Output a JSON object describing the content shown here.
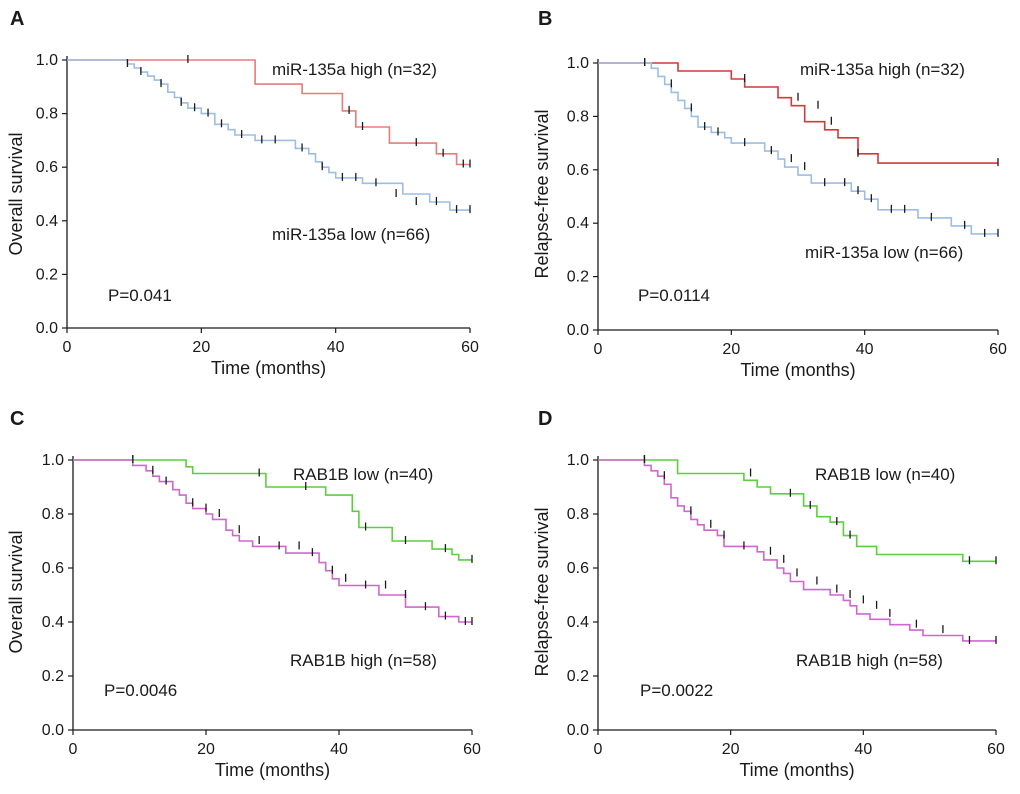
{
  "figure": {
    "panels": [
      "A",
      "B",
      "C",
      "D"
    ]
  },
  "chart_data": [
    {
      "type": "line",
      "panel": "A",
      "title": "",
      "xlabel": "Time (months)",
      "ylabel": "Overall survival",
      "xlim": [
        0,
        60
      ],
      "ylim": [
        0,
        1
      ],
      "xticks": [
        "0",
        "20",
        "40",
        "60"
      ],
      "yticks": [
        "0.0",
        "0.2",
        "0.4",
        "0.6",
        "0.8",
        "1.0"
      ],
      "pvalue": "P=0.041",
      "series": [
        {
          "name": "miR-135a high (n=32)",
          "color": "#e87b7b",
          "x": [
            0,
            28,
            28,
            35,
            35,
            41,
            41,
            43,
            43,
            48,
            48,
            55,
            55,
            58,
            58,
            60
          ],
          "y": [
            1,
            1,
            0.91,
            0.91,
            0.875,
            0.875,
            0.81,
            0.81,
            0.75,
            0.75,
            0.69,
            0.69,
            0.65,
            0.65,
            0.61,
            0.61
          ],
          "censor_x": [
            18,
            42,
            44,
            52,
            56,
            59,
            60
          ],
          "censor_y": [
            1,
            0.81,
            0.75,
            0.69,
            0.65,
            0.61,
            0.61
          ]
        },
        {
          "name": "miR-135a low (n=66)",
          "color": "#9dbde3",
          "x": [
            0,
            9,
            9,
            10,
            10,
            11,
            11,
            12,
            12,
            13,
            13,
            14,
            14,
            15,
            15,
            16,
            16,
            17,
            17,
            18,
            18,
            20,
            20,
            22,
            22,
            24,
            24,
            25,
            25,
            28,
            28,
            34,
            34,
            36,
            36,
            37,
            37,
            38,
            38,
            39,
            39,
            40,
            40,
            44,
            44,
            50,
            50,
            54,
            54,
            57,
            57,
            60
          ],
          "y": [
            1,
            1,
            0.985,
            0.985,
            0.97,
            0.97,
            0.955,
            0.955,
            0.94,
            0.94,
            0.925,
            0.925,
            0.91,
            0.91,
            0.88,
            0.88,
            0.86,
            0.86,
            0.84,
            0.84,
            0.82,
            0.82,
            0.8,
            0.8,
            0.76,
            0.76,
            0.74,
            0.74,
            0.72,
            0.72,
            0.7,
            0.7,
            0.67,
            0.67,
            0.65,
            0.65,
            0.62,
            0.62,
            0.6,
            0.6,
            0.58,
            0.58,
            0.56,
            0.56,
            0.54,
            0.54,
            0.5,
            0.5,
            0.47,
            0.47,
            0.44,
            0.44
          ],
          "censor_x": [
            9,
            11,
            14,
            17,
            19,
            21,
            23,
            26,
            29,
            31,
            35,
            38,
            41,
            43,
            46,
            49,
            52,
            55,
            58,
            60
          ],
          "censor_y": [
            0.985,
            0.955,
            0.91,
            0.84,
            0.82,
            0.8,
            0.76,
            0.72,
            0.7,
            0.7,
            0.67,
            0.6,
            0.56,
            0.56,
            0.54,
            0.5,
            0.47,
            0.47,
            0.44,
            0.44
          ]
        }
      ]
    },
    {
      "type": "line",
      "panel": "B",
      "title": "",
      "xlabel": "Time (months)",
      "ylabel": "Relapse-free survival",
      "xlim": [
        0,
        60
      ],
      "ylim": [
        0,
        1
      ],
      "xticks": [
        "0",
        "20",
        "40",
        "60"
      ],
      "yticks": [
        "0.0",
        "0.2",
        "0.4",
        "0.6",
        "0.8",
        "1.0"
      ],
      "pvalue": "P=0.0114",
      "series": [
        {
          "name": "miR-135a high (n=32)",
          "color": "#d6383a",
          "x": [
            0,
            12,
            12,
            20,
            20,
            22,
            22,
            27,
            27,
            29,
            29,
            31,
            31,
            34,
            34,
            36,
            36,
            39,
            39,
            42,
            42,
            60
          ],
          "y": [
            1,
            1,
            0.97,
            0.97,
            0.94,
            0.94,
            0.91,
            0.91,
            0.87,
            0.87,
            0.84,
            0.84,
            0.78,
            0.78,
            0.75,
            0.75,
            0.72,
            0.72,
            0.66,
            0.66,
            0.625,
            0.625
          ],
          "censor_x": [
            7,
            22,
            30,
            33,
            35,
            39,
            60
          ],
          "censor_y": [
            1,
            0.94,
            0.87,
            0.84,
            0.78,
            0.66,
            0.625
          ]
        },
        {
          "name": "miR-135a low (n=66)",
          "color": "#9dbde3",
          "x": [
            0,
            8,
            8,
            9,
            9,
            10,
            10,
            11,
            11,
            12,
            12,
            13,
            13,
            14,
            14,
            15,
            15,
            17,
            17,
            19,
            19,
            20,
            20,
            25,
            25,
            27,
            27,
            28,
            28,
            30,
            30,
            32,
            32,
            38,
            38,
            40,
            40,
            42,
            42,
            48,
            48,
            53,
            53,
            56,
            56,
            60
          ],
          "y": [
            1,
            1,
            0.98,
            0.98,
            0.95,
            0.95,
            0.92,
            0.92,
            0.89,
            0.89,
            0.86,
            0.86,
            0.83,
            0.83,
            0.8,
            0.8,
            0.76,
            0.76,
            0.74,
            0.74,
            0.72,
            0.72,
            0.7,
            0.7,
            0.67,
            0.67,
            0.64,
            0.64,
            0.61,
            0.61,
            0.58,
            0.58,
            0.55,
            0.55,
            0.52,
            0.52,
            0.49,
            0.49,
            0.45,
            0.45,
            0.42,
            0.42,
            0.39,
            0.39,
            0.36,
            0.36
          ],
          "censor_x": [
            7,
            11,
            14,
            16,
            18,
            22,
            26,
            29,
            31,
            34,
            37,
            39,
            41,
            44,
            46,
            50,
            55,
            58,
            60
          ],
          "censor_y": [
            1,
            0.92,
            0.83,
            0.76,
            0.74,
            0.7,
            0.67,
            0.64,
            0.61,
            0.55,
            0.55,
            0.52,
            0.49,
            0.45,
            0.45,
            0.42,
            0.39,
            0.36,
            0.36
          ]
        }
      ]
    },
    {
      "type": "line",
      "panel": "C",
      "title": "",
      "xlabel": "Time (months)",
      "ylabel": "Overall survival",
      "xlim": [
        0,
        60
      ],
      "ylim": [
        0,
        1
      ],
      "xticks": [
        "0",
        "20",
        "40",
        "60"
      ],
      "yticks": [
        "0.0",
        "0.2",
        "0.4",
        "0.6",
        "0.8",
        "1.0"
      ],
      "pvalue": "P=0.0046",
      "series": [
        {
          "name": "RAB1B low (n=40)",
          "color": "#59d13a",
          "x": [
            0,
            17,
            17,
            18,
            18,
            29,
            29,
            38,
            38,
            42,
            42,
            43,
            43,
            48,
            48,
            54,
            54,
            57,
            57,
            58,
            58,
            60
          ],
          "y": [
            1,
            1,
            0.975,
            0.975,
            0.95,
            0.95,
            0.9,
            0.9,
            0.87,
            0.87,
            0.81,
            0.81,
            0.75,
            0.75,
            0.7,
            0.7,
            0.67,
            0.67,
            0.65,
            0.65,
            0.63,
            0.63
          ],
          "censor_x": [
            9,
            28,
            35,
            44,
            50,
            56,
            60
          ],
          "censor_y": [
            1,
            0.95,
            0.9,
            0.75,
            0.7,
            0.67,
            0.63
          ]
        },
        {
          "name": "RAB1B high (n=58)",
          "color": "#cf67cf",
          "x": [
            0,
            9,
            9,
            11,
            11,
            12,
            12,
            13,
            13,
            15,
            15,
            16,
            16,
            17,
            17,
            18,
            18,
            20,
            20,
            21,
            21,
            23,
            23,
            24,
            24,
            25,
            25,
            27,
            27,
            32,
            32,
            37,
            37,
            38,
            38,
            39,
            39,
            40,
            40,
            46,
            46,
            50,
            50,
            55,
            55,
            58,
            58,
            60
          ],
          "y": [
            1,
            1,
            0.98,
            0.98,
            0.96,
            0.96,
            0.94,
            0.94,
            0.92,
            0.92,
            0.89,
            0.89,
            0.87,
            0.87,
            0.84,
            0.84,
            0.82,
            0.82,
            0.8,
            0.8,
            0.78,
            0.78,
            0.74,
            0.74,
            0.72,
            0.72,
            0.7,
            0.7,
            0.68,
            0.68,
            0.655,
            0.655,
            0.62,
            0.62,
            0.59,
            0.59,
            0.56,
            0.56,
            0.535,
            0.535,
            0.5,
            0.5,
            0.455,
            0.455,
            0.42,
            0.42,
            0.4,
            0.4
          ],
          "censor_x": [
            9,
            12,
            14,
            18,
            20,
            22,
            25,
            28,
            31,
            34,
            36,
            39,
            41,
            44,
            47,
            50,
            53,
            56,
            59,
            60
          ],
          "censor_y": [
            1,
            0.96,
            0.92,
            0.84,
            0.82,
            0.8,
            0.74,
            0.7,
            0.68,
            0.68,
            0.655,
            0.59,
            0.56,
            0.535,
            0.535,
            0.5,
            0.455,
            0.42,
            0.4,
            0.4
          ]
        }
      ]
    },
    {
      "type": "line",
      "panel": "D",
      "title": "",
      "xlabel": "Time (months)",
      "ylabel": "Relapse-free survival",
      "xlim": [
        0,
        60
      ],
      "ylim": [
        0,
        1
      ],
      "xticks": [
        "0",
        "20",
        "40",
        "60"
      ],
      "yticks": [
        "0.0",
        "0.2",
        "0.4",
        "0.6",
        "0.8",
        "1.0"
      ],
      "pvalue": "P=0.0022",
      "series": [
        {
          "name": "RAB1B low (n=40)",
          "color": "#59d13a",
          "x": [
            0,
            12,
            12,
            22,
            22,
            24,
            24,
            26,
            26,
            31,
            31,
            33,
            33,
            35,
            35,
            37,
            37,
            39,
            39,
            42,
            42,
            55,
            55,
            60
          ],
          "y": [
            1,
            1,
            0.95,
            0.95,
            0.925,
            0.925,
            0.9,
            0.9,
            0.875,
            0.875,
            0.83,
            0.83,
            0.79,
            0.79,
            0.77,
            0.77,
            0.72,
            0.72,
            0.68,
            0.68,
            0.65,
            0.65,
            0.625,
            0.625
          ],
          "censor_x": [
            7,
            23,
            29,
            32,
            36,
            38,
            56,
            60
          ],
          "censor_y": [
            1,
            0.95,
            0.875,
            0.83,
            0.77,
            0.72,
            0.625,
            0.625
          ]
        },
        {
          "name": "RAB1B high (n=58)",
          "color": "#cf67cf",
          "x": [
            0,
            7,
            7,
            8,
            8,
            9,
            9,
            10,
            10,
            11,
            11,
            12,
            12,
            13,
            13,
            14,
            14,
            15,
            15,
            16,
            16,
            18,
            18,
            19,
            19,
            24,
            24,
            25,
            25,
            27,
            27,
            28,
            28,
            29,
            29,
            31,
            31,
            35,
            35,
            37,
            37,
            38,
            38,
            39,
            39,
            41,
            41,
            44,
            44,
            47,
            47,
            49,
            49,
            55,
            55,
            60
          ],
          "y": [
            1,
            1,
            0.98,
            0.98,
            0.96,
            0.96,
            0.94,
            0.94,
            0.91,
            0.91,
            0.86,
            0.86,
            0.83,
            0.83,
            0.81,
            0.81,
            0.78,
            0.78,
            0.76,
            0.76,
            0.74,
            0.74,
            0.72,
            0.72,
            0.68,
            0.68,
            0.66,
            0.66,
            0.63,
            0.63,
            0.6,
            0.6,
            0.58,
            0.58,
            0.55,
            0.55,
            0.52,
            0.52,
            0.5,
            0.5,
            0.48,
            0.48,
            0.46,
            0.46,
            0.43,
            0.43,
            0.41,
            0.41,
            0.39,
            0.39,
            0.37,
            0.37,
            0.35,
            0.35,
            0.33,
            0.33
          ],
          "censor_x": [
            7,
            10,
            14,
            17,
            19,
            22,
            26,
            28,
            30,
            33,
            36,
            38,
            40,
            42,
            44,
            48,
            52,
            56,
            60
          ],
          "censor_y": [
            1,
            0.94,
            0.81,
            0.76,
            0.72,
            0.68,
            0.66,
            0.63,
            0.58,
            0.55,
            0.52,
            0.5,
            0.48,
            0.46,
            0.43,
            0.39,
            0.37,
            0.33,
            0.33
          ]
        }
      ]
    }
  ]
}
